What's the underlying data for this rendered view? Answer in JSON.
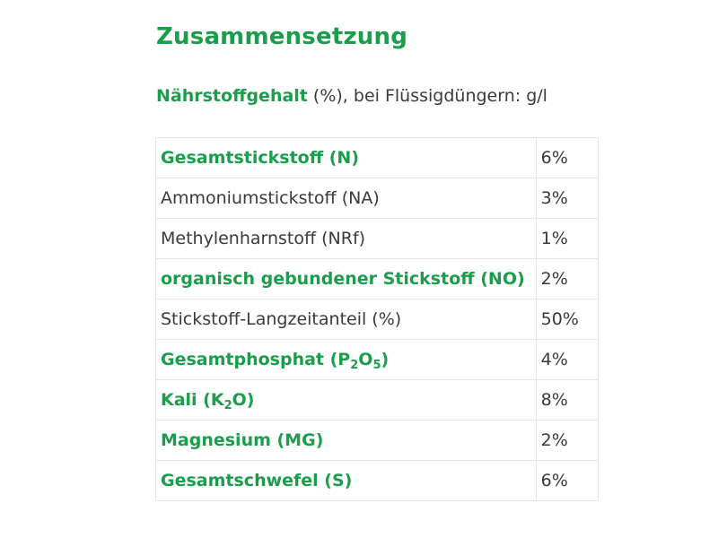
{
  "section_title": "Zusammensetzung",
  "subtitle": {
    "strong": "Nährstoffgehalt",
    "rest": " (%), bei Flüssigdüngern: g/l"
  },
  "rows": [
    {
      "label": "Gesamtstickstoff (N)",
      "value": "6%",
      "emphasis": true
    },
    {
      "label": "Ammoniumstickstoff (NA)",
      "value": "3%",
      "emphasis": false
    },
    {
      "label": "Methylenharnstoff (NRf)",
      "value": "1%",
      "emphasis": false
    },
    {
      "label": "organisch gebundener Stickstoff (NO)",
      "value": "2%",
      "emphasis": true
    },
    {
      "label": "Stickstoff-Langzeitanteil (%)",
      "value": "50%",
      "emphasis": false
    },
    {
      "label_parts": {
        "pre": "Gesamtphosphat (P",
        "sub1": "2",
        "mid": "O",
        "sub2": "5",
        "post": ")"
      },
      "value": "4%",
      "emphasis": true
    },
    {
      "label_parts": {
        "pre": "Kali (K",
        "sub1": "2",
        "post": "O)"
      },
      "value": "8%",
      "emphasis": true
    },
    {
      "label": "Magnesium (MG)",
      "value": "2%",
      "emphasis": true
    },
    {
      "label": "Gesamtschwefel (S)",
      "value": "6%",
      "emphasis": true
    }
  ],
  "colors": {
    "accent_green": "#1a9e4b",
    "text": "#3a3a3a",
    "border": "#e6e6e6"
  }
}
